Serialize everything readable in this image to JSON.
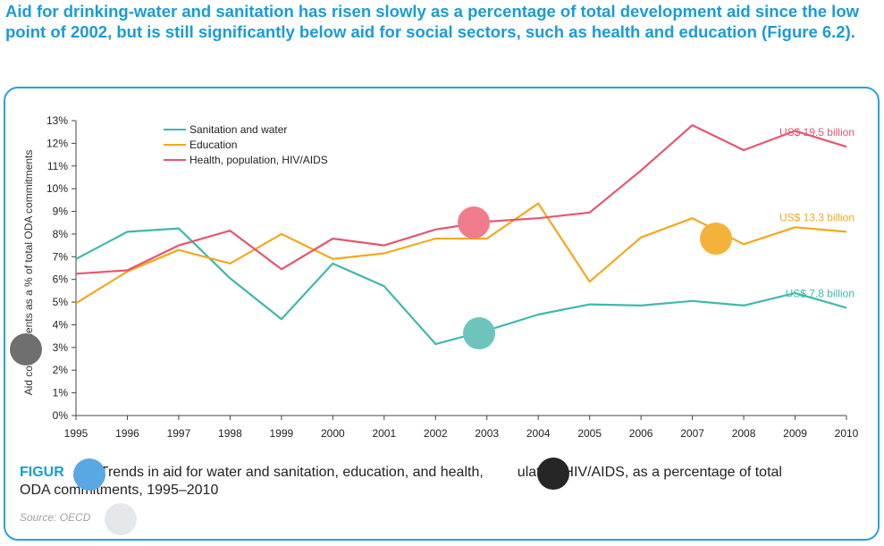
{
  "headline": "Aid for drinking-water and sanitation has risen slowly as a percentage of total development aid since the low point of 2002, but is still significantly below aid for social sectors, such as health and education (Figure 6.2).",
  "caption": {
    "label": "FIGUR",
    "text_a": "Trends in aid for water and sanitation, education, and health,",
    "text_b": "ulation/HIV/AIDS, as a percentage of total",
    "text_c": "ODA commitments, 1995–2010"
  },
  "source": "Source: OECD",
  "markers": [
    {
      "name": "pink-circle-marker",
      "color": "#f07b8a"
    },
    {
      "name": "teal-circle-marker",
      "color": "#6cc4bd"
    },
    {
      "name": "orange-circle-marker",
      "color": "#f5b23a"
    },
    {
      "name": "gray-circle-marker",
      "color": "#6f6f6f"
    },
    {
      "name": "blue-circle-marker",
      "color": "#5aa8e3"
    },
    {
      "name": "black-circle-marker",
      "color": "#262626"
    },
    {
      "name": "light-gray-circle-marker",
      "color": "#e5e7ea"
    }
  ],
  "chart_data": {
    "type": "line",
    "title": "",
    "xlabel": "",
    "ylabel": "Aid commitments as a % of total ODA commitments",
    "ylim": [
      0,
      13
    ],
    "y_ticks": [
      "0%",
      "1%",
      "2%",
      "3%",
      "4%",
      "5%",
      "6%",
      "7%",
      "8%",
      "9%",
      "10%",
      "11%",
      "12%",
      "13%"
    ],
    "x": [
      "1995",
      "1996",
      "1997",
      "1998",
      "1999",
      "2000",
      "2001",
      "2002",
      "2003",
      "2004",
      "2005",
      "2006",
      "2007",
      "2008",
      "2009",
      "2010"
    ],
    "grid": false,
    "legend_position": "top-left",
    "series": [
      {
        "name": "Sanitation and water",
        "color": "#3fb8ad",
        "values": [
          6.9,
          8.1,
          8.25,
          6.05,
          4.25,
          6.7,
          5.7,
          3.15,
          3.75,
          4.45,
          4.9,
          4.85,
          5.05,
          4.85,
          5.4,
          4.75
        ],
        "end_label": "US$ 7.8 billion"
      },
      {
        "name": "Education",
        "color": "#f3a81c",
        "values": [
          4.95,
          6.35,
          7.3,
          6.7,
          8.0,
          6.9,
          7.15,
          7.8,
          7.8,
          9.35,
          5.9,
          7.85,
          8.7,
          7.55,
          8.3,
          8.1
        ],
        "end_label": "US$ 13.3 billion"
      },
      {
        "name": "Health, population, HIV/AIDS",
        "color": "#e5566e",
        "values": [
          6.25,
          6.4,
          7.5,
          8.15,
          6.45,
          7.8,
          7.5,
          8.2,
          8.55,
          8.7,
          8.95,
          10.8,
          12.8,
          11.7,
          12.55,
          11.85
        ],
        "end_label": "US$ 19.5 billion"
      }
    ]
  }
}
